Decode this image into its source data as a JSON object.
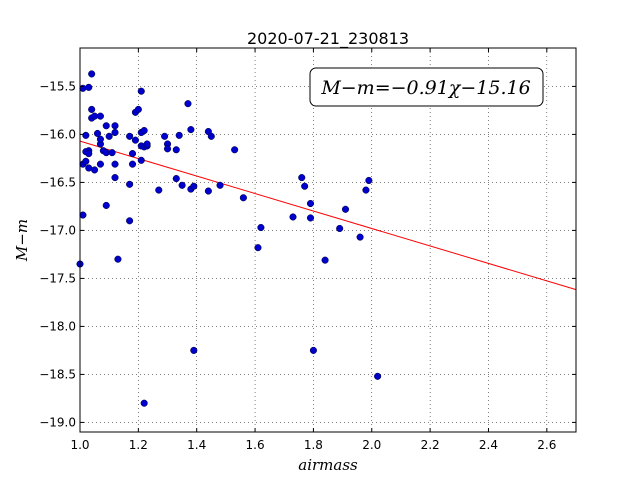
{
  "chart_data": {
    "type": "scatter",
    "title": "2020-07-21_230813",
    "xlabel": "airmass",
    "ylabel": "M−m",
    "xlim": [
      1.0,
      2.7
    ],
    "ylim": [
      -19.1,
      -15.1
    ],
    "x_ticks": [
      1.0,
      1.2,
      1.4,
      1.6,
      1.8,
      2.0,
      2.2,
      2.4,
      2.6
    ],
    "x_tick_labels": [
      "1.0",
      "1.2",
      "1.4",
      "1.6",
      "1.8",
      "2.0",
      "2.2",
      "2.4",
      "2.6"
    ],
    "y_ticks": [
      -15.5,
      -16.0,
      -16.5,
      -17.0,
      -17.5,
      -18.0,
      -18.5,
      -19.0
    ],
    "y_tick_labels": [
      "−15.5",
      "−16.0",
      "−16.5",
      "−17.0",
      "−17.5",
      "−18.0",
      "−18.5",
      "−19.0"
    ],
    "grid": true,
    "annotation": "M−m=−0.91χ−15.16",
    "fit": {
      "slope": -0.91,
      "intercept": -15.16,
      "color": "#ff0000"
    },
    "point_color": "#0000cc",
    "points": [
      [
        1.0,
        -17.35
      ],
      [
        1.01,
        -16.31
      ],
      [
        1.01,
        -16.84
      ],
      [
        1.01,
        -15.52
      ],
      [
        1.02,
        -16.18
      ],
      [
        1.02,
        -16.01
      ],
      [
        1.02,
        -16.28
      ],
      [
        1.03,
        -15.51
      ],
      [
        1.03,
        -16.35
      ],
      [
        1.03,
        -16.17
      ],
      [
        1.03,
        -16.2
      ],
      [
        1.04,
        -15.37
      ],
      [
        1.04,
        -15.74
      ],
      [
        1.04,
        -15.83
      ],
      [
        1.05,
        -15.81
      ],
      [
        1.05,
        -16.37
      ],
      [
        1.06,
        -15.99
      ],
      [
        1.07,
        -16.31
      ],
      [
        1.07,
        -15.81
      ],
      [
        1.07,
        -16.1
      ],
      [
        1.07,
        -16.05
      ],
      [
        1.08,
        -16.17
      ],
      [
        1.09,
        -16.19
      ],
      [
        1.09,
        -15.91
      ],
      [
        1.09,
        -16.74
      ],
      [
        1.1,
        -16.02
      ],
      [
        1.11,
        -16.19
      ],
      [
        1.12,
        -16.31
      ],
      [
        1.12,
        -15.91
      ],
      [
        1.12,
        -15.98
      ],
      [
        1.12,
        -16.45
      ],
      [
        1.13,
        -17.3
      ],
      [
        1.17,
        -16.02
      ],
      [
        1.17,
        -16.52
      ],
      [
        1.17,
        -16.9
      ],
      [
        1.18,
        -16.2
      ],
      [
        1.18,
        -16.31
      ],
      [
        1.19,
        -16.06
      ],
      [
        1.19,
        -15.77
      ],
      [
        1.2,
        -15.74
      ],
      [
        1.21,
        -15.55
      ],
      [
        1.21,
        -16.12
      ],
      [
        1.21,
        -15.98
      ],
      [
        1.21,
        -16.27
      ],
      [
        1.22,
        -15.96
      ],
      [
        1.22,
        -16.13
      ],
      [
        1.23,
        -16.12
      ],
      [
        1.23,
        -16.1
      ],
      [
        1.22,
        -18.8
      ],
      [
        1.27,
        -16.58
      ],
      [
        1.29,
        -16.02
      ],
      [
        1.3,
        -16.1
      ],
      [
        1.3,
        -16.15
      ],
      [
        1.33,
        -16.46
      ],
      [
        1.33,
        -16.16
      ],
      [
        1.34,
        -16.01
      ],
      [
        1.35,
        -16.53
      ],
      [
        1.37,
        -15.68
      ],
      [
        1.38,
        -15.95
      ],
      [
        1.38,
        -16.57
      ],
      [
        1.39,
        -16.54
      ],
      [
        1.39,
        -18.25
      ],
      [
        1.44,
        -16.59
      ],
      [
        1.44,
        -15.97
      ],
      [
        1.45,
        -16.02
      ],
      [
        1.48,
        -16.53
      ],
      [
        1.53,
        -16.16
      ],
      [
        1.56,
        -16.66
      ],
      [
        1.61,
        -17.18
      ],
      [
        1.62,
        -16.97
      ],
      [
        1.73,
        -16.86
      ],
      [
        1.76,
        -16.45
      ],
      [
        1.77,
        -16.54
      ],
      [
        1.79,
        -16.72
      ],
      [
        1.79,
        -16.87
      ],
      [
        1.8,
        -18.25
      ],
      [
        1.84,
        -17.31
      ],
      [
        1.89,
        -16.98
      ],
      [
        1.91,
        -16.78
      ],
      [
        1.96,
        -17.07
      ],
      [
        1.98,
        -16.58
      ],
      [
        1.99,
        -16.48
      ],
      [
        2.02,
        -18.52
      ]
    ]
  }
}
